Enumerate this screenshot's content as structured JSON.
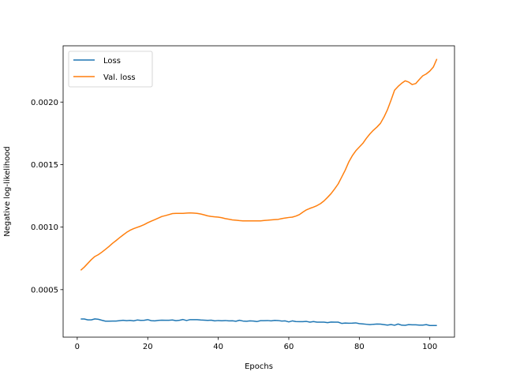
{
  "chart_data": {
    "type": "line",
    "xlabel": "Epochs",
    "ylabel": "Negative log-likelihood",
    "xlim": [
      -4,
      107
    ],
    "ylim": [
      0.00012,
      0.00245
    ],
    "xticks": [
      0,
      20,
      40,
      60,
      80,
      100
    ],
    "xtick_labels": [
      "0",
      "20",
      "40",
      "60",
      "80",
      "100"
    ],
    "yticks": [
      0.0005,
      0.001,
      0.0015,
      0.002
    ],
    "ytick_labels": [
      "0.0005",
      "0.0010",
      "0.0015",
      "0.0020"
    ],
    "grid": false,
    "legend_position": "top-left",
    "series": [
      {
        "name": "Loss",
        "color": "#1f77b4",
        "x": [
          1,
          2,
          3,
          4,
          5,
          6,
          7,
          8,
          9,
          10,
          11,
          12,
          13,
          14,
          15,
          16,
          17,
          18,
          19,
          20,
          21,
          22,
          23,
          24,
          25,
          26,
          27,
          28,
          29,
          30,
          31,
          32,
          33,
          34,
          35,
          36,
          37,
          38,
          39,
          40,
          41,
          42,
          43,
          44,
          45,
          46,
          47,
          48,
          49,
          50,
          51,
          52,
          53,
          54,
          55,
          56,
          57,
          58,
          59,
          60,
          61,
          62,
          63,
          64,
          65,
          66,
          67,
          68,
          69,
          70,
          71,
          72,
          73,
          74,
          75,
          76,
          77,
          78,
          79,
          80,
          81,
          82,
          83,
          84,
          85,
          86,
          87,
          88,
          89,
          90,
          91,
          92,
          93,
          94,
          95,
          96,
          97,
          98,
          99,
          100,
          101,
          102
        ],
        "values": [
          0.000265,
          0.000265,
          0.000258,
          0.000258,
          0.000266,
          0.000263,
          0.000255,
          0.000248,
          0.000248,
          0.000249,
          0.000249,
          0.000252,
          0.000255,
          0.000252,
          0.000254,
          0.00025,
          0.000257,
          0.000254,
          0.000255,
          0.00026,
          0.000252,
          0.00025,
          0.000254,
          0.000256,
          0.000255,
          0.000255,
          0.000257,
          0.000252,
          0.000255,
          0.000261,
          0.000253,
          0.00026,
          0.00026,
          0.00026,
          0.000257,
          0.000256,
          0.000254,
          0.000256,
          0.00025,
          0.000253,
          0.000251,
          0.000253,
          0.00025,
          0.000251,
          0.000247,
          0.000255,
          0.000249,
          0.000247,
          0.00025,
          0.000249,
          0.000245,
          0.000252,
          0.000252,
          0.000253,
          0.00025,
          0.000254,
          0.000253,
          0.000249,
          0.00025,
          0.000242,
          0.00025,
          0.000245,
          0.000244,
          0.000244,
          0.000246,
          0.00024,
          0.000245,
          0.00024,
          0.00024,
          0.00024,
          0.000236,
          0.000241,
          0.00024,
          0.00024,
          0.00023,
          0.000233,
          0.000231,
          0.000232,
          0.000234,
          0.000228,
          0.000226,
          0.000223,
          0.00022,
          0.000223,
          0.000225,
          0.000224,
          0.00022,
          0.000216,
          0.000221,
          0.000215,
          0.000225,
          0.000216,
          0.000215,
          0.00022,
          0.000219,
          0.000219,
          0.000216,
          0.000216,
          0.00022,
          0.000213,
          0.000213,
          0.000213
        ]
      },
      {
        "name": "Val. loss",
        "color": "#ff7f0e",
        "x": [
          1,
          2,
          3,
          4,
          5,
          6,
          7,
          8,
          9,
          10,
          11,
          12,
          13,
          14,
          15,
          16,
          17,
          18,
          19,
          20,
          21,
          22,
          23,
          24,
          25,
          26,
          27,
          28,
          29,
          30,
          31,
          32,
          33,
          34,
          35,
          36,
          37,
          38,
          39,
          40,
          41,
          42,
          43,
          44,
          45,
          46,
          47,
          48,
          49,
          50,
          51,
          52,
          53,
          54,
          55,
          56,
          57,
          58,
          59,
          60,
          61,
          62,
          63,
          64,
          65,
          66,
          67,
          68,
          69,
          70,
          71,
          72,
          73,
          74,
          75,
          76,
          77,
          78,
          79,
          80,
          81,
          82,
          83,
          84,
          85,
          86,
          87,
          88,
          89,
          90,
          91,
          92,
          93,
          94,
          95,
          96,
          97,
          98,
          99,
          100,
          101,
          102
        ],
        "values": [
          0.000655,
          0.00068,
          0.00071,
          0.00074,
          0.000765,
          0.00078,
          0.0008,
          0.000822,
          0.000845,
          0.00087,
          0.000892,
          0.000915,
          0.000937,
          0.000958,
          0.000975,
          0.000988,
          0.000998,
          0.001008,
          0.00102,
          0.001035,
          0.001048,
          0.00106,
          0.001072,
          0.001085,
          0.001092,
          0.0011,
          0.001108,
          0.00111,
          0.00111,
          0.00111,
          0.001112,
          0.001114,
          0.001112,
          0.00111,
          0.001105,
          0.001098,
          0.00109,
          0.001085,
          0.001082,
          0.00108,
          0.001075,
          0.001068,
          0.001063,
          0.001058,
          0.001055,
          0.001052,
          0.00105,
          0.00105,
          0.00105,
          0.00105,
          0.00105,
          0.00105,
          0.001053,
          0.001055,
          0.001058,
          0.00106,
          0.001062,
          0.001068,
          0.001073,
          0.001077,
          0.00108,
          0.001088,
          0.0011,
          0.00112,
          0.001138,
          0.00115,
          0.00116,
          0.001172,
          0.001188,
          0.00121,
          0.001238,
          0.001268,
          0.001305,
          0.001345,
          0.0014,
          0.001455,
          0.00152,
          0.00157,
          0.00161,
          0.00164,
          0.00167,
          0.00171,
          0.001745,
          0.001775,
          0.0018,
          0.00183,
          0.00188,
          0.00194,
          0.002015,
          0.002095,
          0.002125,
          0.00215,
          0.00217,
          0.00216,
          0.00214,
          0.002148,
          0.00218,
          0.00221,
          0.002225,
          0.002248,
          0.00228,
          0.002345
        ]
      }
    ]
  }
}
